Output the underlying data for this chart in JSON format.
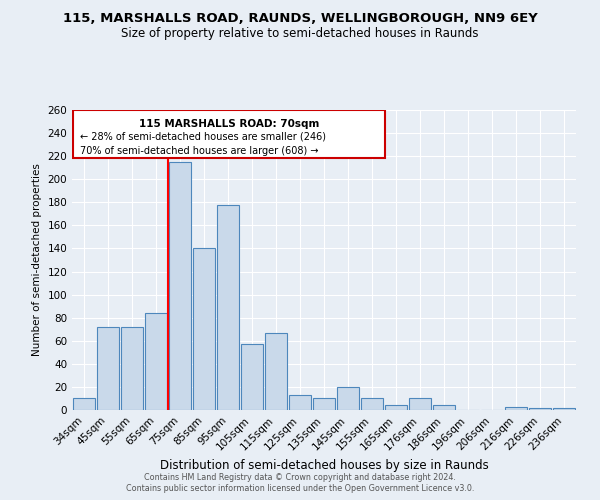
{
  "title": "115, MARSHALLS ROAD, RAUNDS, WELLINGBOROUGH, NN9 6EY",
  "subtitle": "Size of property relative to semi-detached houses in Raunds",
  "xlabel": "Distribution of semi-detached houses by size in Raunds",
  "ylabel": "Number of semi-detached properties",
  "categories": [
    "34sqm",
    "45sqm",
    "55sqm",
    "65sqm",
    "75sqm",
    "85sqm",
    "95sqm",
    "105sqm",
    "115sqm",
    "125sqm",
    "135sqm",
    "145sqm",
    "155sqm",
    "165sqm",
    "176sqm",
    "186sqm",
    "196sqm",
    "206sqm",
    "216sqm",
    "226sqm",
    "236sqm"
  ],
  "values": [
    10,
    72,
    72,
    84,
    215,
    140,
    178,
    57,
    67,
    13,
    10,
    20,
    10,
    4,
    10,
    4,
    0,
    0,
    3,
    2,
    2
  ],
  "bar_color": "#c9d9ea",
  "bar_edge_color": "#4d87bc",
  "red_line_x": 3,
  "property_label": "115 MARSHALLS ROAD: 70sqm",
  "smaller_pct": "28%",
  "smaller_count": 246,
  "larger_pct": "70%",
  "larger_count": 608,
  "ylim": [
    0,
    260
  ],
  "yticks": [
    0,
    20,
    40,
    60,
    80,
    100,
    120,
    140,
    160,
    180,
    200,
    220,
    240,
    260
  ],
  "bg_color": "#e8eef5",
  "grid_color": "#ffffff",
  "title_fontsize": 9.5,
  "subtitle_fontsize": 8.5,
  "footer1": "Contains HM Land Registry data © Crown copyright and database right 2024.",
  "footer2": "Contains public sector information licensed under the Open Government Licence v3.0."
}
